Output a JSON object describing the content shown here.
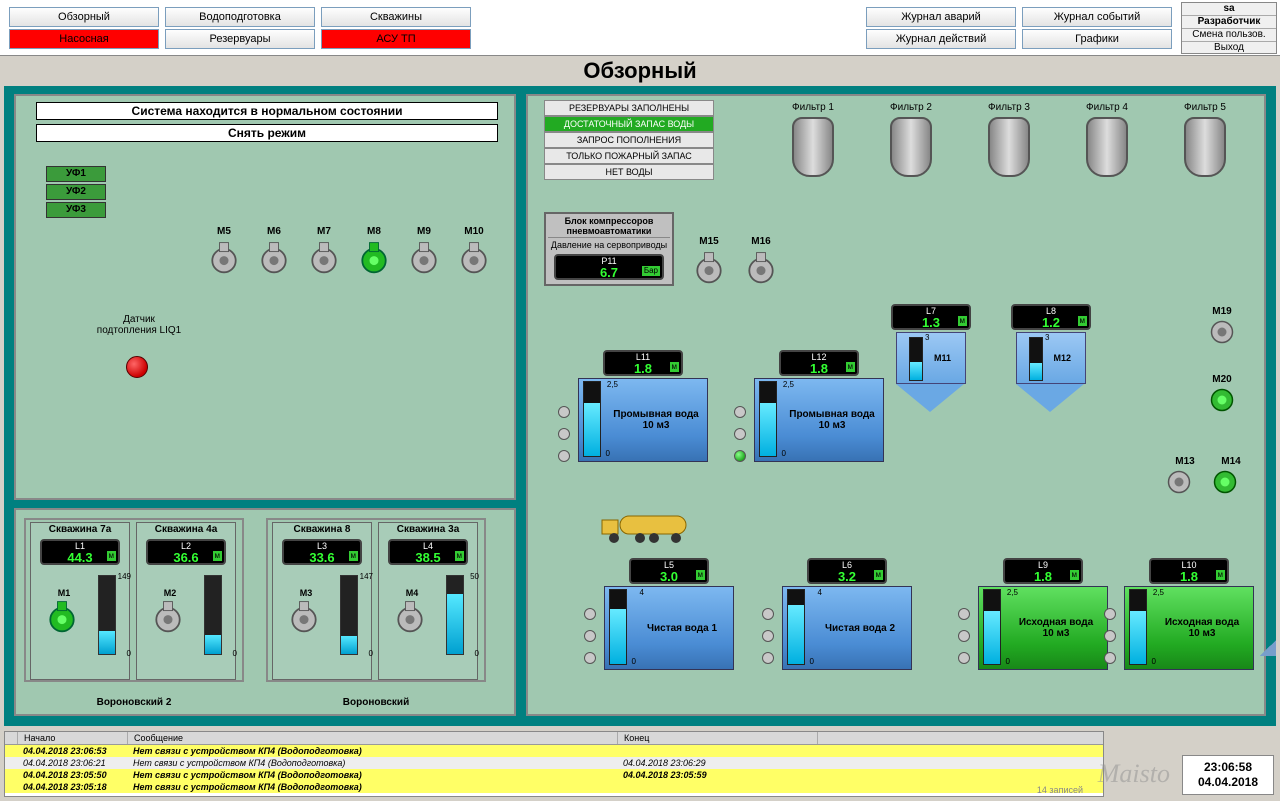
{
  "nav_left": [
    {
      "label": "Обзорный",
      "cls": ""
    },
    {
      "label": "Водоподготовка",
      "cls": ""
    },
    {
      "label": "Скважины",
      "cls": ""
    },
    {
      "label": "Насосная",
      "cls": "red"
    },
    {
      "label": "Резервуары",
      "cls": ""
    },
    {
      "label": "АСУ ТП",
      "cls": "red"
    }
  ],
  "nav_right": [
    {
      "label": "Журнал аварий"
    },
    {
      "label": "Журнал событий"
    },
    {
      "label": "Журнал действий"
    },
    {
      "label": "Графики"
    }
  ],
  "user_box": {
    "user": "sa",
    "role": "Разработчик",
    "change": "Смена пользов.",
    "exit": "Выход"
  },
  "page_title": "Обзорный",
  "status1": "Система находится в нормальном  состоянии",
  "status2": "Снять режим",
  "uf": [
    "УФ1",
    "УФ2",
    "УФ3"
  ],
  "alarm_sensor": {
    "label": "Датчик подтопления LIQ1"
  },
  "pumps_top": [
    "M5",
    "M6",
    "M7",
    "M8",
    "M9",
    "M10"
  ],
  "pump_on_idx": 3,
  "wells_groups": [
    {
      "label": "Вороновский 2",
      "wells": [
        {
          "title": "Скважина 7а",
          "L": "L1",
          "val": "44.3",
          "max": "149",
          "pct": 30,
          "m": "M1",
          "on": true
        },
        {
          "title": "Скважина 4а",
          "L": "L2",
          "val": "36.6",
          "max": "",
          "pct": 25,
          "m": "M2",
          "on": false
        }
      ]
    },
    {
      "label": "Вороновский",
      "wells": [
        {
          "title": "Скважина 8",
          "L": "L3",
          "val": "33.6",
          "max": "147",
          "pct": 23,
          "m": "M3",
          "on": false
        },
        {
          "title": "Скважина 3а",
          "L": "L4",
          "val": "38.5",
          "max": "50",
          "pct": 77,
          "m": "M4",
          "on": false
        }
      ]
    }
  ],
  "status_stack": [
    {
      "t": "РЕЗЕРВУАРЫ ЗАПОЛНЕНЫ",
      "on": false
    },
    {
      "t": "ДОСТАТОЧНЫЙ ЗАПАС ВОДЫ",
      "on": true
    },
    {
      "t": "ЗАПРОС ПОПОЛНЕНИЯ",
      "on": false
    },
    {
      "t": "ТОЛЬКО ПОЖАРНЫЙ ЗАПАС",
      "on": false
    },
    {
      "t": "НЕТ ВОДЫ",
      "on": false
    }
  ],
  "compressor": {
    "t1": "Блок компрессоров пневмоавтоматики",
    "t2": "Давление на сервоприводы",
    "L": "P11",
    "val": "6.7",
    "unit": "Бар"
  },
  "pumps_m1516": [
    "M15",
    "M16"
  ],
  "filters": [
    "Фильтр 1",
    "Фильтр 2",
    "Фильтр 3",
    "Фильтр 4",
    "Фильтр 5"
  ],
  "right_pumps": [
    "M19",
    "M20",
    "M13",
    "M14"
  ],
  "hoppers": [
    {
      "L": "L7",
      "val": "1.3",
      "m": "M11",
      "max": "3"
    },
    {
      "L": "L8",
      "val": "1.2",
      "m": "M12",
      "max": "3"
    }
  ],
  "tanks_row1": [
    {
      "L": "L11",
      "val": "1.8",
      "name": "Промывная вода",
      "cap": "10 м3",
      "max": "2,5",
      "led": "off"
    },
    {
      "L": "L12",
      "val": "1.8",
      "name": "Промывная вода",
      "cap": "10 м3",
      "max": "2,5",
      "led": "on"
    }
  ],
  "tanks_row2": [
    {
      "L": "L5",
      "val": "3.0",
      "name": "Чистая вода 1",
      "cap": "",
      "max": "4",
      "led": "off",
      "cls": ""
    },
    {
      "L": "L6",
      "val": "3.2",
      "name": "Чистая вода 2",
      "cap": "",
      "max": "4",
      "led": "off",
      "cls": ""
    },
    {
      "L": "L9",
      "val": "1.8",
      "name": "Исходная вода",
      "cap": "10 м3",
      "max": "2,5",
      "led": "off",
      "cls": "green"
    },
    {
      "L": "L10",
      "val": "1.8",
      "name": "Исходная вода",
      "cap": "10 м3",
      "max": "2,5",
      "led": "off",
      "cls": "green"
    }
  ],
  "alarm_log": {
    "cols": [
      "Начало",
      "Сообщение",
      "Конец"
    ],
    "rows": [
      {
        "t": "04.04.2018 23:06:53",
        "m": "Нет связи с устройством КП4 (Водоподготовка)",
        "e": "",
        "cls": "active"
      },
      {
        "t": "04.04.2018 23:06:21",
        "m": "Нет связи с устройством КП4 (Водоподготовка)",
        "e": "04.04.2018 23:06:29",
        "cls": "ack"
      },
      {
        "t": "04.04.2018 23:05:50",
        "m": "Нет связи с устройством КП4 (Водоподготовка)",
        "e": "04.04.2018 23:05:59",
        "cls": "active"
      },
      {
        "t": "04.04.2018 23:05:18",
        "m": "Нет связи с устройством КП4 (Водоподготовка)",
        "e": "",
        "cls": "active"
      }
    ],
    "count": "14  записей"
  },
  "clock": {
    "time": "23:06:58",
    "date": "04.04.2018"
  },
  "watermark": "Maisto",
  "colors": {
    "teal": "#008080",
    "panel": "#a0c8b0",
    "green": "#33ff33"
  }
}
